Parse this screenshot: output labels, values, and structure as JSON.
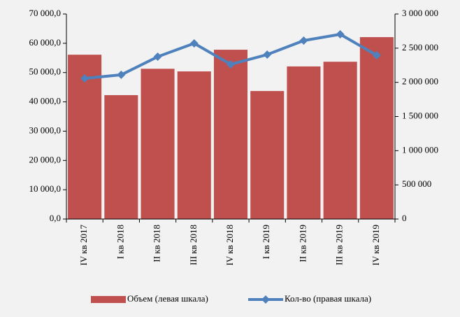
{
  "chart_data": {
    "type": "bar",
    "categories": [
      "IV кв 2017",
      "I кв 2018",
      "II кв 2018",
      "III кв 2018",
      "IV кв 2018",
      "I кв 2019",
      "II кв 2019",
      "III кв 2019",
      "IV кв 2019"
    ],
    "series": [
      {
        "name": "Объем (левая шкала)",
        "type": "bar",
        "color": "#c0504d",
        "axis": "y",
        "values": [
          56100,
          42300,
          51300,
          50400,
          57800,
          43700,
          52100,
          53700,
          62100
        ]
      },
      {
        "name": "Кол-во (правая шкала)",
        "type": "line",
        "color": "#4f81bd",
        "axis": "y2",
        "values": [
          2058000,
          2110000,
          2375000,
          2570000,
          2263000,
          2406000,
          2611000,
          2703000,
          2396000
        ]
      }
    ],
    "ylim": [
      0,
      70000
    ],
    "yticks": [
      {
        "value": 0,
        "label": "0,0"
      },
      {
        "value": 10000,
        "label": "10 000,0"
      },
      {
        "value": 20000,
        "label": "20 000,0"
      },
      {
        "value": 30000,
        "label": "30 000,0"
      },
      {
        "value": 40000,
        "label": "40 000,0"
      },
      {
        "value": 50000,
        "label": "50 000,0"
      },
      {
        "value": 60000,
        "label": "60 000,0"
      },
      {
        "value": 70000,
        "label": "70 000,0"
      }
    ],
    "y2lim": [
      0,
      3000000
    ],
    "y2ticks": [
      0,
      {
        "value": 500000,
        "label": "500 000"
      },
      {
        "value": 1000000,
        "label": "1 000 000"
      },
      {
        "value": 1500000,
        "label": "1 500 000"
      },
      {
        "value": 2000000,
        "label": "2 000 000"
      },
      {
        "value": 2500000,
        "label": "2 500 000"
      },
      {
        "value": 3000000,
        "label": "3 000 000"
      }
    ],
    "legend": "bottom"
  }
}
